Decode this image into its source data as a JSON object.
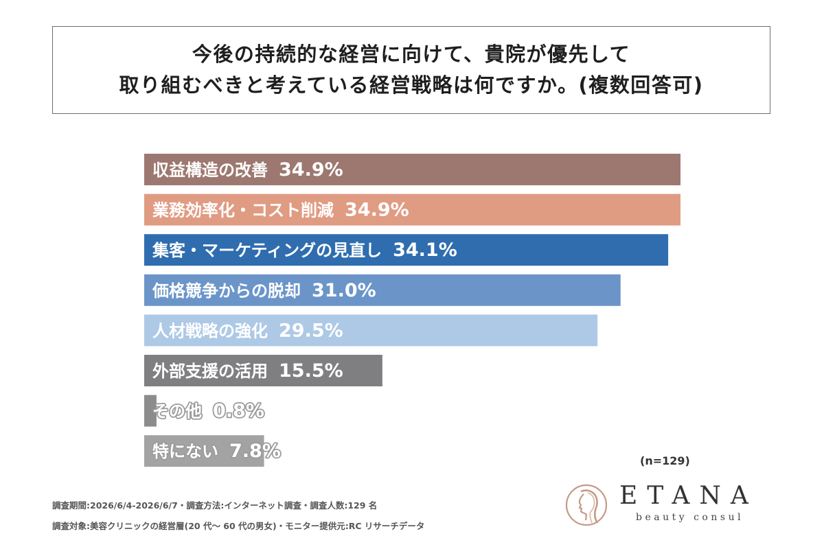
{
  "title": {
    "line1": "今後の持続的な経営に向けて、貴院が優先して",
    "line2": "取り組むべきと考えている経営戦略は何ですか。(複数回答可)"
  },
  "chart_data": {
    "type": "bar",
    "orientation": "horizontal",
    "value_unit": "%",
    "categories": [
      "収益構造の改善",
      "業務効率化・コスト削減",
      "集客・マーケティングの見直し",
      "価格競争からの脱却",
      "人材戦略の強化",
      "外部支援の活用",
      "その他",
      "特にない"
    ],
    "values": [
      34.9,
      34.9,
      34.1,
      31.0,
      29.5,
      15.5,
      0.8,
      7.8
    ],
    "value_labels": [
      "34.9%",
      "34.9%",
      "34.1%",
      "31.0%",
      "29.5%",
      "15.5%",
      "0.8%",
      "7.8%"
    ],
    "colors": [
      "#9d7870",
      "#e09b83",
      "#2f6daf",
      "#6b95c9",
      "#adc9e6",
      "#7f7f81",
      "#8c8c8c",
      "#a3a3a3"
    ],
    "xlim": [
      0,
      34.9
    ],
    "grid": false,
    "legend": "none"
  },
  "sample_note": "(n=129)",
  "footer": {
    "line1": "調査期間:2026/6/4-2026/6/7・調査方法:インターネット調査・調査人数:129 名",
    "line2": "調査対象:美容クリニックの経営層(20 代〜 60 代の男女)・モニター提供元:RC リサーチデータ"
  },
  "logo": {
    "name": "ETANA",
    "sub": "beauty consul",
    "icon": "woman-profile-icon",
    "color": "#c59a86"
  }
}
